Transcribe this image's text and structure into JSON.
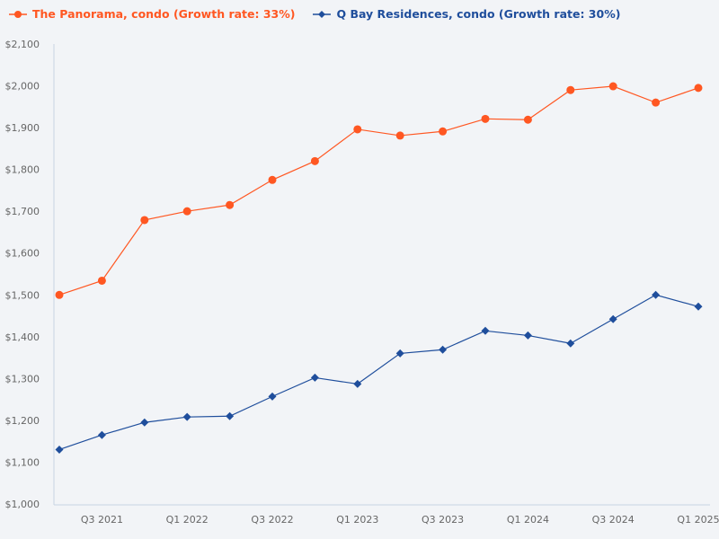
{
  "chart_data": {
    "type": "line",
    "title": "",
    "xlabel": "",
    "ylabel": "",
    "ylim": [
      1000,
      2100
    ],
    "y_ticks": [
      "$1,000",
      "$1,100",
      "$1,200",
      "$1,300",
      "$1,400",
      "$1,500",
      "$1,600",
      "$1,700",
      "$1,800",
      "$1,900",
      "$2,000",
      "$2,100"
    ],
    "x": [
      "Q2 2021",
      "Q3 2021",
      "Q4 2021",
      "Q1 2022",
      "Q2 2022",
      "Q3 2022",
      "Q4 2022",
      "Q1 2023",
      "Q2 2023",
      "Q3 2023",
      "Q4 2023",
      "Q1 2024",
      "Q2 2024",
      "Q3 2024",
      "Q4 2024",
      "Q1 2025"
    ],
    "x_tick_labels": [
      "Q3 2021",
      "Q1 2022",
      "Q3 2022",
      "Q1 2023",
      "Q3 2023",
      "Q1 2024",
      "Q3 2024",
      "Q1 2025"
    ],
    "grid": false,
    "legend_position": "top-left",
    "series": [
      {
        "name": "The Panorama, condo (Growth rate: 33%)",
        "color": "#ff5722",
        "marker": "circle",
        "values": [
          1500,
          1534,
          1679,
          1700,
          1715,
          1775,
          1820,
          1896,
          1881,
          1891,
          1921,
          1919,
          1990,
          1999,
          1960,
          1995
        ]
      },
      {
        "name": "Q Bay Residences, condo (Growth rate: 30%)",
        "color": "#1f4e9c",
        "marker": "diamond",
        "values": [
          1130,
          1165,
          1195,
          1208,
          1210,
          1257,
          1302,
          1287,
          1360,
          1369,
          1414,
          1403,
          1384,
          1442,
          1500,
          1472
        ]
      }
    ]
  }
}
